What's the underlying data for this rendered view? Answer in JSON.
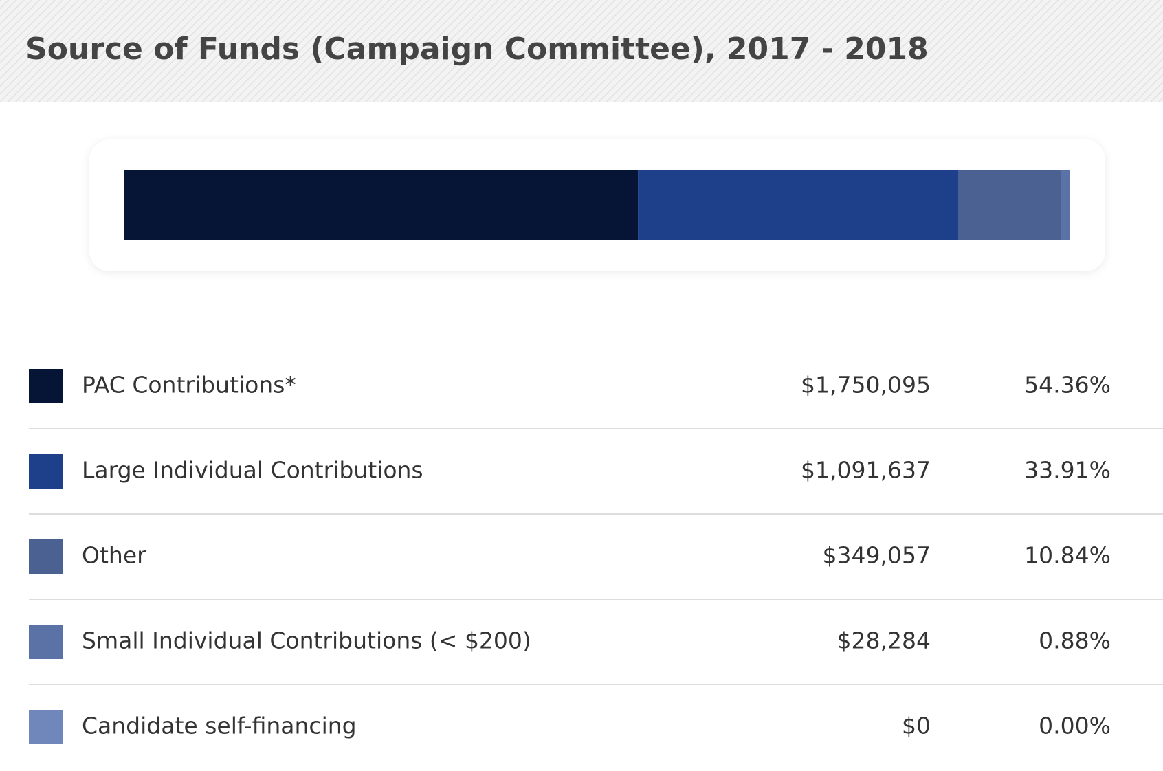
{
  "chart_data": {
    "type": "bar",
    "orientation": "horizontal",
    "stacked": true,
    "title": "Source of Funds (Campaign Committee), 2017 - 2018",
    "series": [
      {
        "name": "PAC Contributions*",
        "color": "#061535",
        "values": [
          54.36
        ],
        "value_labels": [
          "54.36%"
        ],
        "amounts": [
          1750095
        ],
        "amount_labels": [
          "$1,750,095"
        ]
      },
      {
        "name": "Large Individual Contributions",
        "color": "#1e3f8a",
        "values": [
          33.91
        ],
        "value_labels": [
          "33.91%"
        ],
        "amounts": [
          1091637
        ],
        "amount_labels": [
          "$1,091,637"
        ]
      },
      {
        "name": "Other",
        "color": "#4a6191",
        "values": [
          10.84
        ],
        "value_labels": [
          "10.84%"
        ],
        "amounts": [
          349057
        ],
        "amount_labels": [
          "$349,057"
        ]
      },
      {
        "name": "Small Individual Contributions (< $200)",
        "color": "#5a72a6",
        "values": [
          0.88
        ],
        "value_labels": [
          "0.88%"
        ],
        "amounts": [
          28284
        ],
        "amount_labels": [
          "$28,284"
        ]
      },
      {
        "name": "Candidate self-financing",
        "color": "#6f87bb",
        "values": [
          0
        ],
        "value_labels": [
          "0.00%"
        ],
        "amounts": [
          0
        ],
        "amount_labels": [
          "$0"
        ]
      }
    ]
  }
}
